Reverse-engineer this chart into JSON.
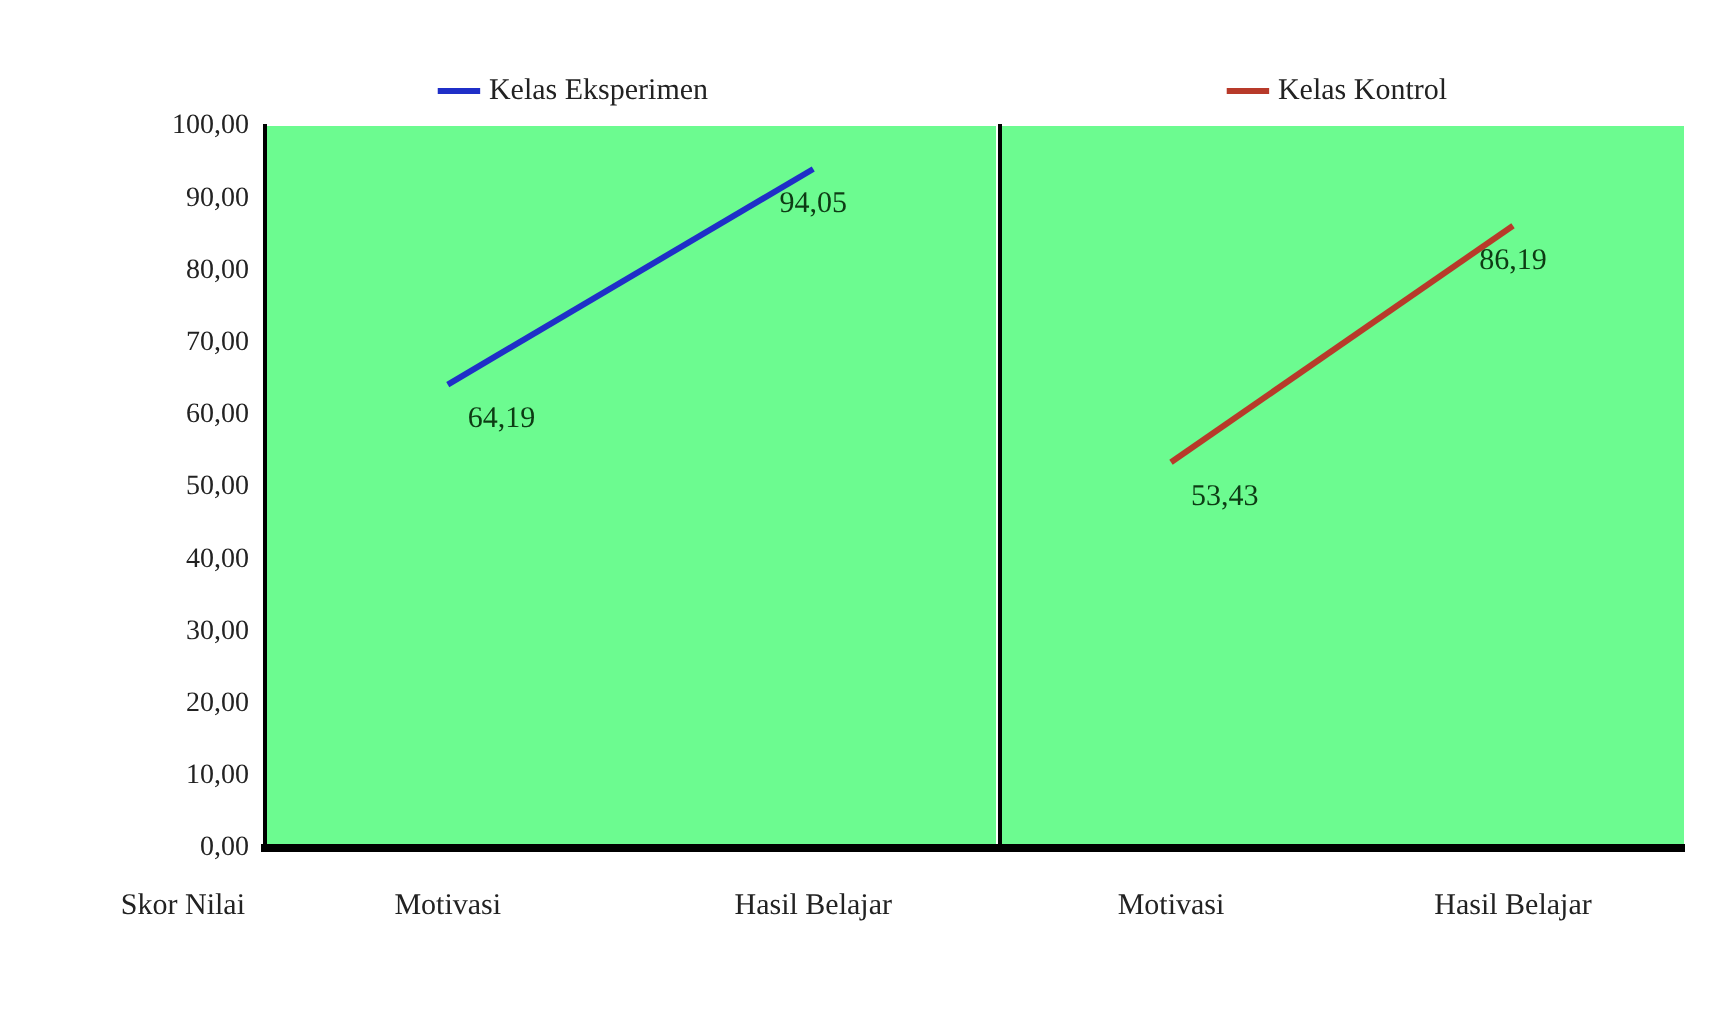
{
  "chart_data": [
    {
      "type": "line",
      "categories": [
        "Motivasi",
        "Hasil Belajar"
      ],
      "series": [
        {
          "name": "Kelas Eksperimen",
          "color": "#1f2fc8",
          "values": [
            64.19,
            94.05
          ],
          "value_labels": [
            "64,19",
            "94,05"
          ]
        }
      ],
      "ylim": [
        0,
        100
      ],
      "yticks": [
        {
          "value": 0,
          "label": "0,00"
        },
        {
          "value": 10,
          "label": "10,00"
        },
        {
          "value": 20,
          "label": "20,00"
        },
        {
          "value": 30,
          "label": "30,00"
        },
        {
          "value": 40,
          "label": "40,00"
        },
        {
          "value": 50,
          "label": "50,00"
        },
        {
          "value": 60,
          "label": "60,00"
        },
        {
          "value": 70,
          "label": "70,00"
        },
        {
          "value": 80,
          "label": "80,00"
        },
        {
          "value": 90,
          "label": "90,00"
        },
        {
          "value": 100,
          "label": "100,00"
        }
      ],
      "annotations": [
        "Skor Nilai"
      ],
      "legend": "top",
      "grid": false,
      "marker": "none",
      "line_style": "solid"
    },
    {
      "type": "line",
      "categories": [
        "Motivasi",
        "Hasil Belajar"
      ],
      "series": [
        {
          "name": "Kelas Kontrol",
          "color": "#b83a2a",
          "values": [
            53.43,
            86.19
          ],
          "value_labels": [
            "53,43",
            "86,19"
          ]
        }
      ],
      "ylim": [
        0,
        100
      ],
      "tick_labels": "x",
      "legend": "top",
      "grid": false,
      "marker": "none",
      "line_style": "solid"
    }
  ]
}
